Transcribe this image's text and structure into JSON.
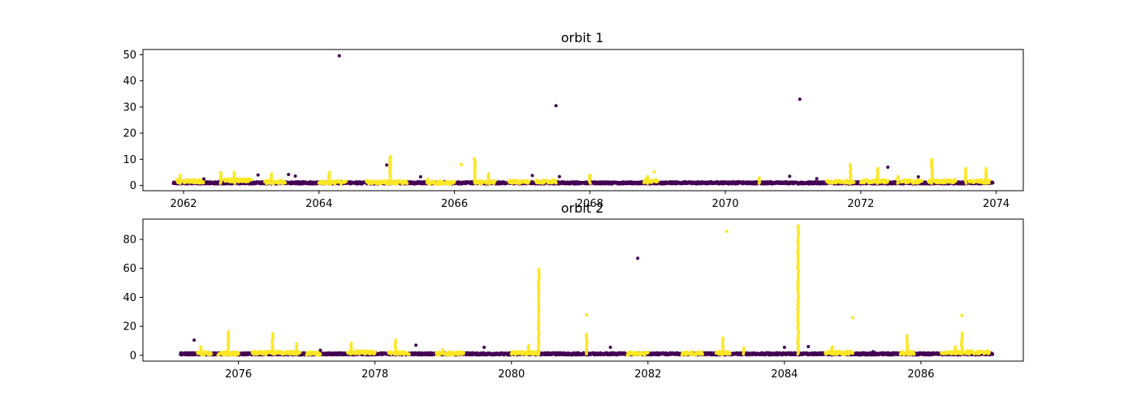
{
  "chart_data": [
    {
      "type": "scatter",
      "title": "orbit 1",
      "xlim": [
        2061.4,
        2074.4
      ],
      "ylim": [
        -2.0,
        52.0
      ],
      "xticks": [
        2062,
        2064,
        2066,
        2068,
        2070,
        2072,
        2074
      ],
      "yticks": [
        0,
        10,
        20,
        30,
        40,
        50
      ],
      "colors": {
        "class_0": "#440154",
        "class_1": "#fde725"
      },
      "baseline": [
        {
          "x0": 2061.85,
          "x1": 2073.95,
          "y": 1.0,
          "class": 0
        },
        {
          "x0": 2061.9,
          "x1": 2062.3,
          "y": 1.6,
          "class": 1
        },
        {
          "x0": 2062.6,
          "x1": 2063.0,
          "y": 2.0,
          "class": 1
        },
        {
          "x0": 2063.2,
          "x1": 2063.5,
          "y": 1.3,
          "class": 1
        },
        {
          "x0": 2064.0,
          "x1": 2064.4,
          "y": 1.2,
          "class": 1
        },
        {
          "x0": 2064.7,
          "x1": 2065.3,
          "y": 1.2,
          "class": 1
        },
        {
          "x0": 2065.6,
          "x1": 2066.0,
          "y": 1.0,
          "class": 1
        },
        {
          "x0": 2066.3,
          "x1": 2066.6,
          "y": 1.3,
          "class": 1
        },
        {
          "x0": 2066.8,
          "x1": 2067.1,
          "y": 1.4,
          "class": 1
        },
        {
          "x0": 2067.2,
          "x1": 2067.5,
          "y": 1.5,
          "class": 1
        },
        {
          "x0": 2068.8,
          "x1": 2069.0,
          "y": 1.6,
          "class": 1
        },
        {
          "x0": 2071.5,
          "x1": 2071.9,
          "y": 1.4,
          "class": 1
        },
        {
          "x0": 2072.0,
          "x1": 2072.4,
          "y": 1.6,
          "class": 1
        },
        {
          "x0": 2072.6,
          "x1": 2072.9,
          "y": 1.5,
          "class": 1
        },
        {
          "x0": 2073.0,
          "x1": 2073.4,
          "y": 1.6,
          "class": 1
        },
        {
          "x0": 2073.6,
          "x1": 2073.9,
          "y": 1.5,
          "class": 1
        }
      ],
      "spikes": [
        {
          "x": 2061.95,
          "ymax": 4.0,
          "class": 1
        },
        {
          "x": 2062.55,
          "ymax": 5.0,
          "class": 1
        },
        {
          "x": 2062.75,
          "ymax": 5.0,
          "class": 1
        },
        {
          "x": 2063.3,
          "ymax": 4.5,
          "class": 1
        },
        {
          "x": 2064.15,
          "ymax": 5.0,
          "class": 1
        },
        {
          "x": 2065.05,
          "ymax": 11.2,
          "class": 1
        },
        {
          "x": 2065.6,
          "ymax": 2.5,
          "class": 1
        },
        {
          "x": 2066.3,
          "ymax": 10.3,
          "class": 1
        },
        {
          "x": 2066.5,
          "ymax": 4.5,
          "class": 1
        },
        {
          "x": 2068.0,
          "ymax": 4.0,
          "class": 1
        },
        {
          "x": 2068.85,
          "ymax": 3.5,
          "class": 1
        },
        {
          "x": 2070.5,
          "ymax": 3.0,
          "class": 1
        },
        {
          "x": 2071.85,
          "ymax": 8.0,
          "class": 1
        },
        {
          "x": 2072.25,
          "ymax": 6.5,
          "class": 1
        },
        {
          "x": 2072.55,
          "ymax": 3.5,
          "class": 1
        },
        {
          "x": 2073.05,
          "ymax": 10.0,
          "class": 1
        },
        {
          "x": 2073.55,
          "ymax": 6.5,
          "class": 1
        },
        {
          "x": 2073.85,
          "ymax": 6.5,
          "class": 1
        }
      ],
      "outliers": [
        {
          "x": 2064.3,
          "y": 49.6,
          "class": 0
        },
        {
          "x": 2067.5,
          "y": 30.5,
          "class": 0
        },
        {
          "x": 2071.1,
          "y": 33.0,
          "class": 0
        },
        {
          "x": 2065.0,
          "y": 7.8,
          "class": 0
        },
        {
          "x": 2066.1,
          "y": 8.0,
          "class": 1
        },
        {
          "x": 2068.95,
          "y": 5.2,
          "class": 1
        },
        {
          "x": 2072.4,
          "y": 7.0,
          "class": 0
        },
        {
          "x": 2063.1,
          "y": 4.0,
          "class": 0
        },
        {
          "x": 2063.55,
          "y": 4.2,
          "class": 0
        },
        {
          "x": 2063.65,
          "y": 3.6,
          "class": 0
        },
        {
          "x": 2065.5,
          "y": 3.3,
          "class": 0
        },
        {
          "x": 2067.15,
          "y": 3.8,
          "class": 0
        },
        {
          "x": 2067.55,
          "y": 3.4,
          "class": 0
        },
        {
          "x": 2070.95,
          "y": 3.5,
          "class": 0
        },
        {
          "x": 2072.85,
          "y": 3.3,
          "class": 0
        },
        {
          "x": 2062.3,
          "y": 2.5,
          "class": 0
        },
        {
          "x": 2071.35,
          "y": 2.6,
          "class": 0
        }
      ]
    },
    {
      "type": "scatter",
      "title": "orbit 2",
      "xlim": [
        2074.6,
        2087.5
      ],
      "ylim": [
        -4.0,
        94.0
      ],
      "xticks": [
        2076,
        2078,
        2080,
        2082,
        2084,
        2086
      ],
      "yticks": [
        0,
        20,
        40,
        60,
        80
      ],
      "colors": {
        "class_0": "#440154",
        "class_1": "#fde725"
      },
      "baseline": [
        {
          "x0": 2075.15,
          "x1": 2087.05,
          "y": 1.0,
          "class": 0
        },
        {
          "x0": 2075.4,
          "x1": 2075.6,
          "y": 1.4,
          "class": 1
        },
        {
          "x0": 2075.7,
          "x1": 2076.0,
          "y": 1.2,
          "class": 1
        },
        {
          "x0": 2076.2,
          "x1": 2076.9,
          "y": 1.8,
          "class": 1
        },
        {
          "x0": 2077.0,
          "x1": 2077.2,
          "y": 1.2,
          "class": 1
        },
        {
          "x0": 2077.6,
          "x1": 2078.0,
          "y": 2.0,
          "class": 1
        },
        {
          "x0": 2078.2,
          "x1": 2078.5,
          "y": 1.5,
          "class": 1
        },
        {
          "x0": 2078.9,
          "x1": 2079.3,
          "y": 1.3,
          "class": 1
        },
        {
          "x0": 2080.0,
          "x1": 2080.4,
          "y": 1.6,
          "class": 1
        },
        {
          "x0": 2081.7,
          "x1": 2082.0,
          "y": 1.3,
          "class": 1
        },
        {
          "x0": 2082.5,
          "x1": 2082.8,
          "y": 1.4,
          "class": 1
        },
        {
          "x0": 2083.0,
          "x1": 2083.2,
          "y": 1.6,
          "class": 1
        },
        {
          "x0": 2084.6,
          "x1": 2085.0,
          "y": 1.8,
          "class": 1
        },
        {
          "x0": 2085.7,
          "x1": 2085.9,
          "y": 1.5,
          "class": 1
        },
        {
          "x0": 2086.3,
          "x1": 2087.0,
          "y": 2.0,
          "class": 1
        }
      ],
      "spikes": [
        {
          "x": 2075.45,
          "ymax": 6.0,
          "class": 1
        },
        {
          "x": 2075.85,
          "ymax": 16.5,
          "class": 1
        },
        {
          "x": 2076.5,
          "ymax": 15.0,
          "class": 1
        },
        {
          "x": 2076.85,
          "ymax": 8.0,
          "class": 1
        },
        {
          "x": 2077.65,
          "ymax": 8.5,
          "class": 1
        },
        {
          "x": 2078.3,
          "ymax": 10.5,
          "class": 1
        },
        {
          "x": 2079.0,
          "ymax": 4.0,
          "class": 1
        },
        {
          "x": 2080.25,
          "ymax": 7.0,
          "class": 1
        },
        {
          "x": 2080.4,
          "ymax": 59.5,
          "class": 1
        },
        {
          "x": 2081.1,
          "ymax": 14.5,
          "class": 1
        },
        {
          "x": 2083.1,
          "ymax": 12.0,
          "class": 1
        },
        {
          "x": 2083.4,
          "ymax": 5.0,
          "class": 1
        },
        {
          "x": 2084.2,
          "ymax": 89.5,
          "class": 1
        },
        {
          "x": 2084.7,
          "ymax": 6.0,
          "class": 1
        },
        {
          "x": 2085.8,
          "ymax": 13.5,
          "class": 1
        },
        {
          "x": 2086.5,
          "ymax": 6.0,
          "class": 1
        },
        {
          "x": 2086.6,
          "ymax": 15.5,
          "class": 1
        }
      ],
      "outliers": [
        {
          "x": 2075.35,
          "y": 10.5,
          "class": 0
        },
        {
          "x": 2078.6,
          "y": 7.0,
          "class": 0
        },
        {
          "x": 2079.6,
          "y": 5.5,
          "class": 0
        },
        {
          "x": 2081.1,
          "y": 28.0,
          "class": 1
        },
        {
          "x": 2081.45,
          "y": 5.5,
          "class": 0
        },
        {
          "x": 2081.85,
          "y": 67.0,
          "class": 0
        },
        {
          "x": 2083.15,
          "y": 85.5,
          "class": 1
        },
        {
          "x": 2084.0,
          "y": 5.5,
          "class": 0
        },
        {
          "x": 2084.35,
          "y": 6.0,
          "class": 0
        },
        {
          "x": 2085.0,
          "y": 26.0,
          "class": 1
        },
        {
          "x": 2086.6,
          "y": 27.5,
          "class": 1
        },
        {
          "x": 2077.2,
          "y": 3.5,
          "class": 0
        },
        {
          "x": 2085.3,
          "y": 2.5,
          "class": 0
        }
      ]
    }
  ]
}
